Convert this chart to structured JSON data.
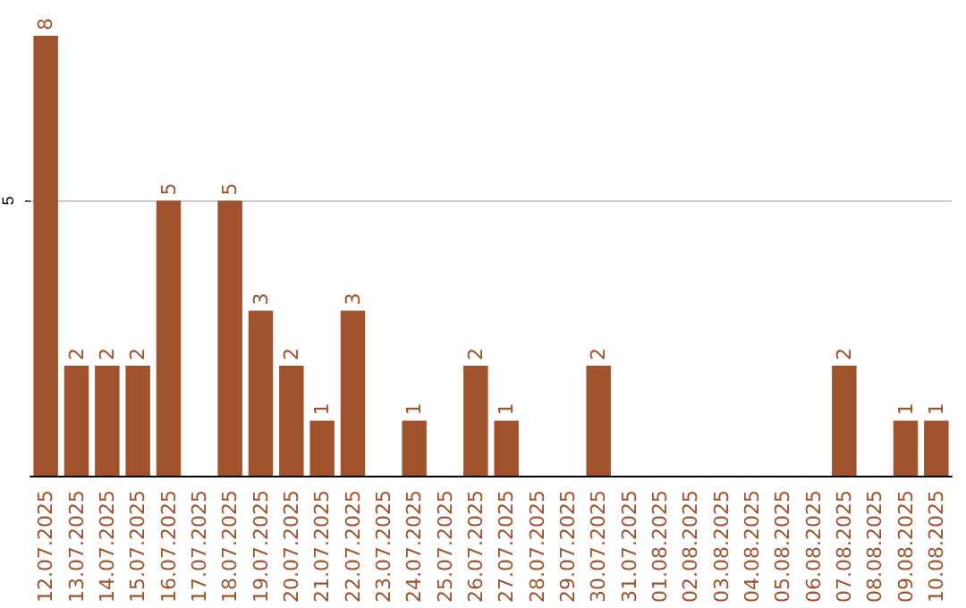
{
  "chart_data": {
    "type": "bar",
    "categories": [
      "12.07.2025",
      "13.07.2025",
      "14.07.2025",
      "15.07.2025",
      "16.07.2025",
      "17.07.2025",
      "18.07.2025",
      "19.07.2025",
      "20.07.2025",
      "21.07.2025",
      "22.07.2025",
      "23.07.2025",
      "24.07.2025",
      "25.07.2025",
      "26.07.2025",
      "27.07.2025",
      "28.07.2025",
      "29.07.2025",
      "30.07.2025",
      "31.07.2025",
      "01.08.2025",
      "02.08.2025",
      "03.08.2025",
      "04.08.2025",
      "05.08.2025",
      "06.08.2025",
      "07.08.2025",
      "08.08.2025",
      "09.08.2025",
      "10.08.2025"
    ],
    "values": [
      8,
      2,
      2,
      2,
      5,
      0,
      5,
      3,
      2,
      1,
      3,
      0,
      1,
      0,
      2,
      1,
      0,
      0,
      2,
      0,
      0,
      0,
      0,
      0,
      0,
      0,
      2,
      0,
      1,
      1
    ],
    "value_labels": [
      "8",
      "2",
      "2",
      "2",
      "5",
      null,
      "5",
      "3",
      "2",
      "1",
      "3",
      null,
      "1",
      null,
      "2",
      "1",
      null,
      null,
      "2",
      null,
      null,
      null,
      null,
      null,
      null,
      null,
      "2",
      null,
      "1",
      "1"
    ],
    "color": "#a0522d",
    "ylim": [
      0,
      8
    ],
    "yticks": [
      5
    ],
    "grid": "y"
  }
}
